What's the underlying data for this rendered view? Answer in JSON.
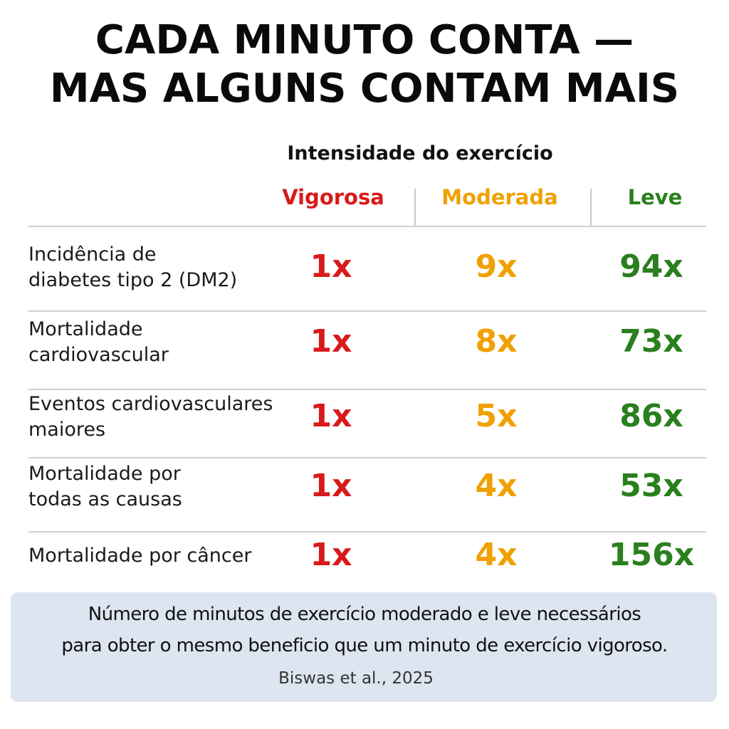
{
  "title": {
    "line1": "CADA MINUTO CONTA —",
    "line2": "MAS ALGUNS CONTAM MAIS"
  },
  "subtitle": "Intensidade do exercício",
  "columns": [
    {
      "label": "Vigorosa",
      "color": "#d91a1a"
    },
    {
      "label": "Moderada",
      "color": "#f0a000"
    },
    {
      "label": "Leve",
      "color": "#2a7f1e"
    }
  ],
  "rows": [
    {
      "line1": "Incidência de",
      "line2": "diabetes tipo 2 (DM2)",
      "values": [
        "1x",
        "9x",
        "94x"
      ]
    },
    {
      "line1": "Mortalidade",
      "line2": "cardiovascular",
      "values": [
        "1x",
        "8x",
        "73x"
      ]
    },
    {
      "line1": "Eventos cardiovasculares",
      "line2": "maiores",
      "values": [
        "1x",
        "5x",
        "86x"
      ]
    },
    {
      "line1": "Mortalidade por",
      "line2": "todas as causas",
      "values": [
        "1x",
        "4x",
        "53x"
      ]
    },
    {
      "line1": "Mortalidade por câncer",
      "line2": "",
      "values": [
        "1x",
        "4x",
        "156x"
      ]
    }
  ],
  "footer": {
    "line1": "Número de minutos de exercício moderado e leve necessários",
    "line2": "para obter o mesmo beneficio que um minuto de exercício vigoroso.",
    "citation": "Biswas et al., 2025"
  }
}
